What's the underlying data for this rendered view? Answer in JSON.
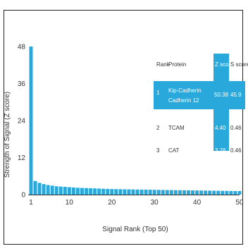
{
  "chart_data": {
    "type": "bar",
    "xlabel": "Signal Rank (Top 50)",
    "ylabel": "Strength of Signal (Z score)",
    "x_ticks": [
      1,
      10,
      20,
      30,
      40,
      50
    ],
    "y_ticks": [
      0,
      12,
      24,
      36,
      48
    ],
    "xlim": [
      1,
      50
    ],
    "ylim": [
      0,
      48
    ],
    "grid": false,
    "bar_color": "#29a8dc",
    "values": [
      50.0,
      4.4,
      3.8,
      3.4,
      3.1,
      2.9,
      2.7,
      2.6,
      2.5,
      2.4,
      2.3,
      2.2,
      2.15,
      2.1,
      2.05,
      2.0,
      1.95,
      1.9,
      1.85,
      1.8,
      1.78,
      1.75,
      1.72,
      1.7,
      1.68,
      1.65,
      1.62,
      1.6,
      1.58,
      1.55,
      1.53,
      1.5,
      1.48,
      1.46,
      1.44,
      1.42,
      1.4,
      1.38,
      1.36,
      1.34,
      1.32,
      1.3,
      1.28,
      1.26,
      1.24,
      1.22,
      1.2,
      1.18,
      1.16,
      1.14
    ],
    "table": {
      "highlight_color": "#29a8dc",
      "headers": [
        "Rank",
        "Protein",
        "Z score",
        "S score"
      ],
      "rows": [
        {
          "rank": "1",
          "protein_line1": "Kip-Cadherin",
          "protein_line2": "Cadherin 12",
          "z": "50.38",
          "s": "45.9",
          "highlight": true
        },
        {
          "rank": "2",
          "protein": "TCAM",
          "z": "4.40",
          "s": "0.46",
          "highlight": false
        },
        {
          "rank": "3",
          "protein": "CAT",
          "z": "3.76",
          "s": "0.46",
          "highlight": false
        }
      ]
    }
  }
}
